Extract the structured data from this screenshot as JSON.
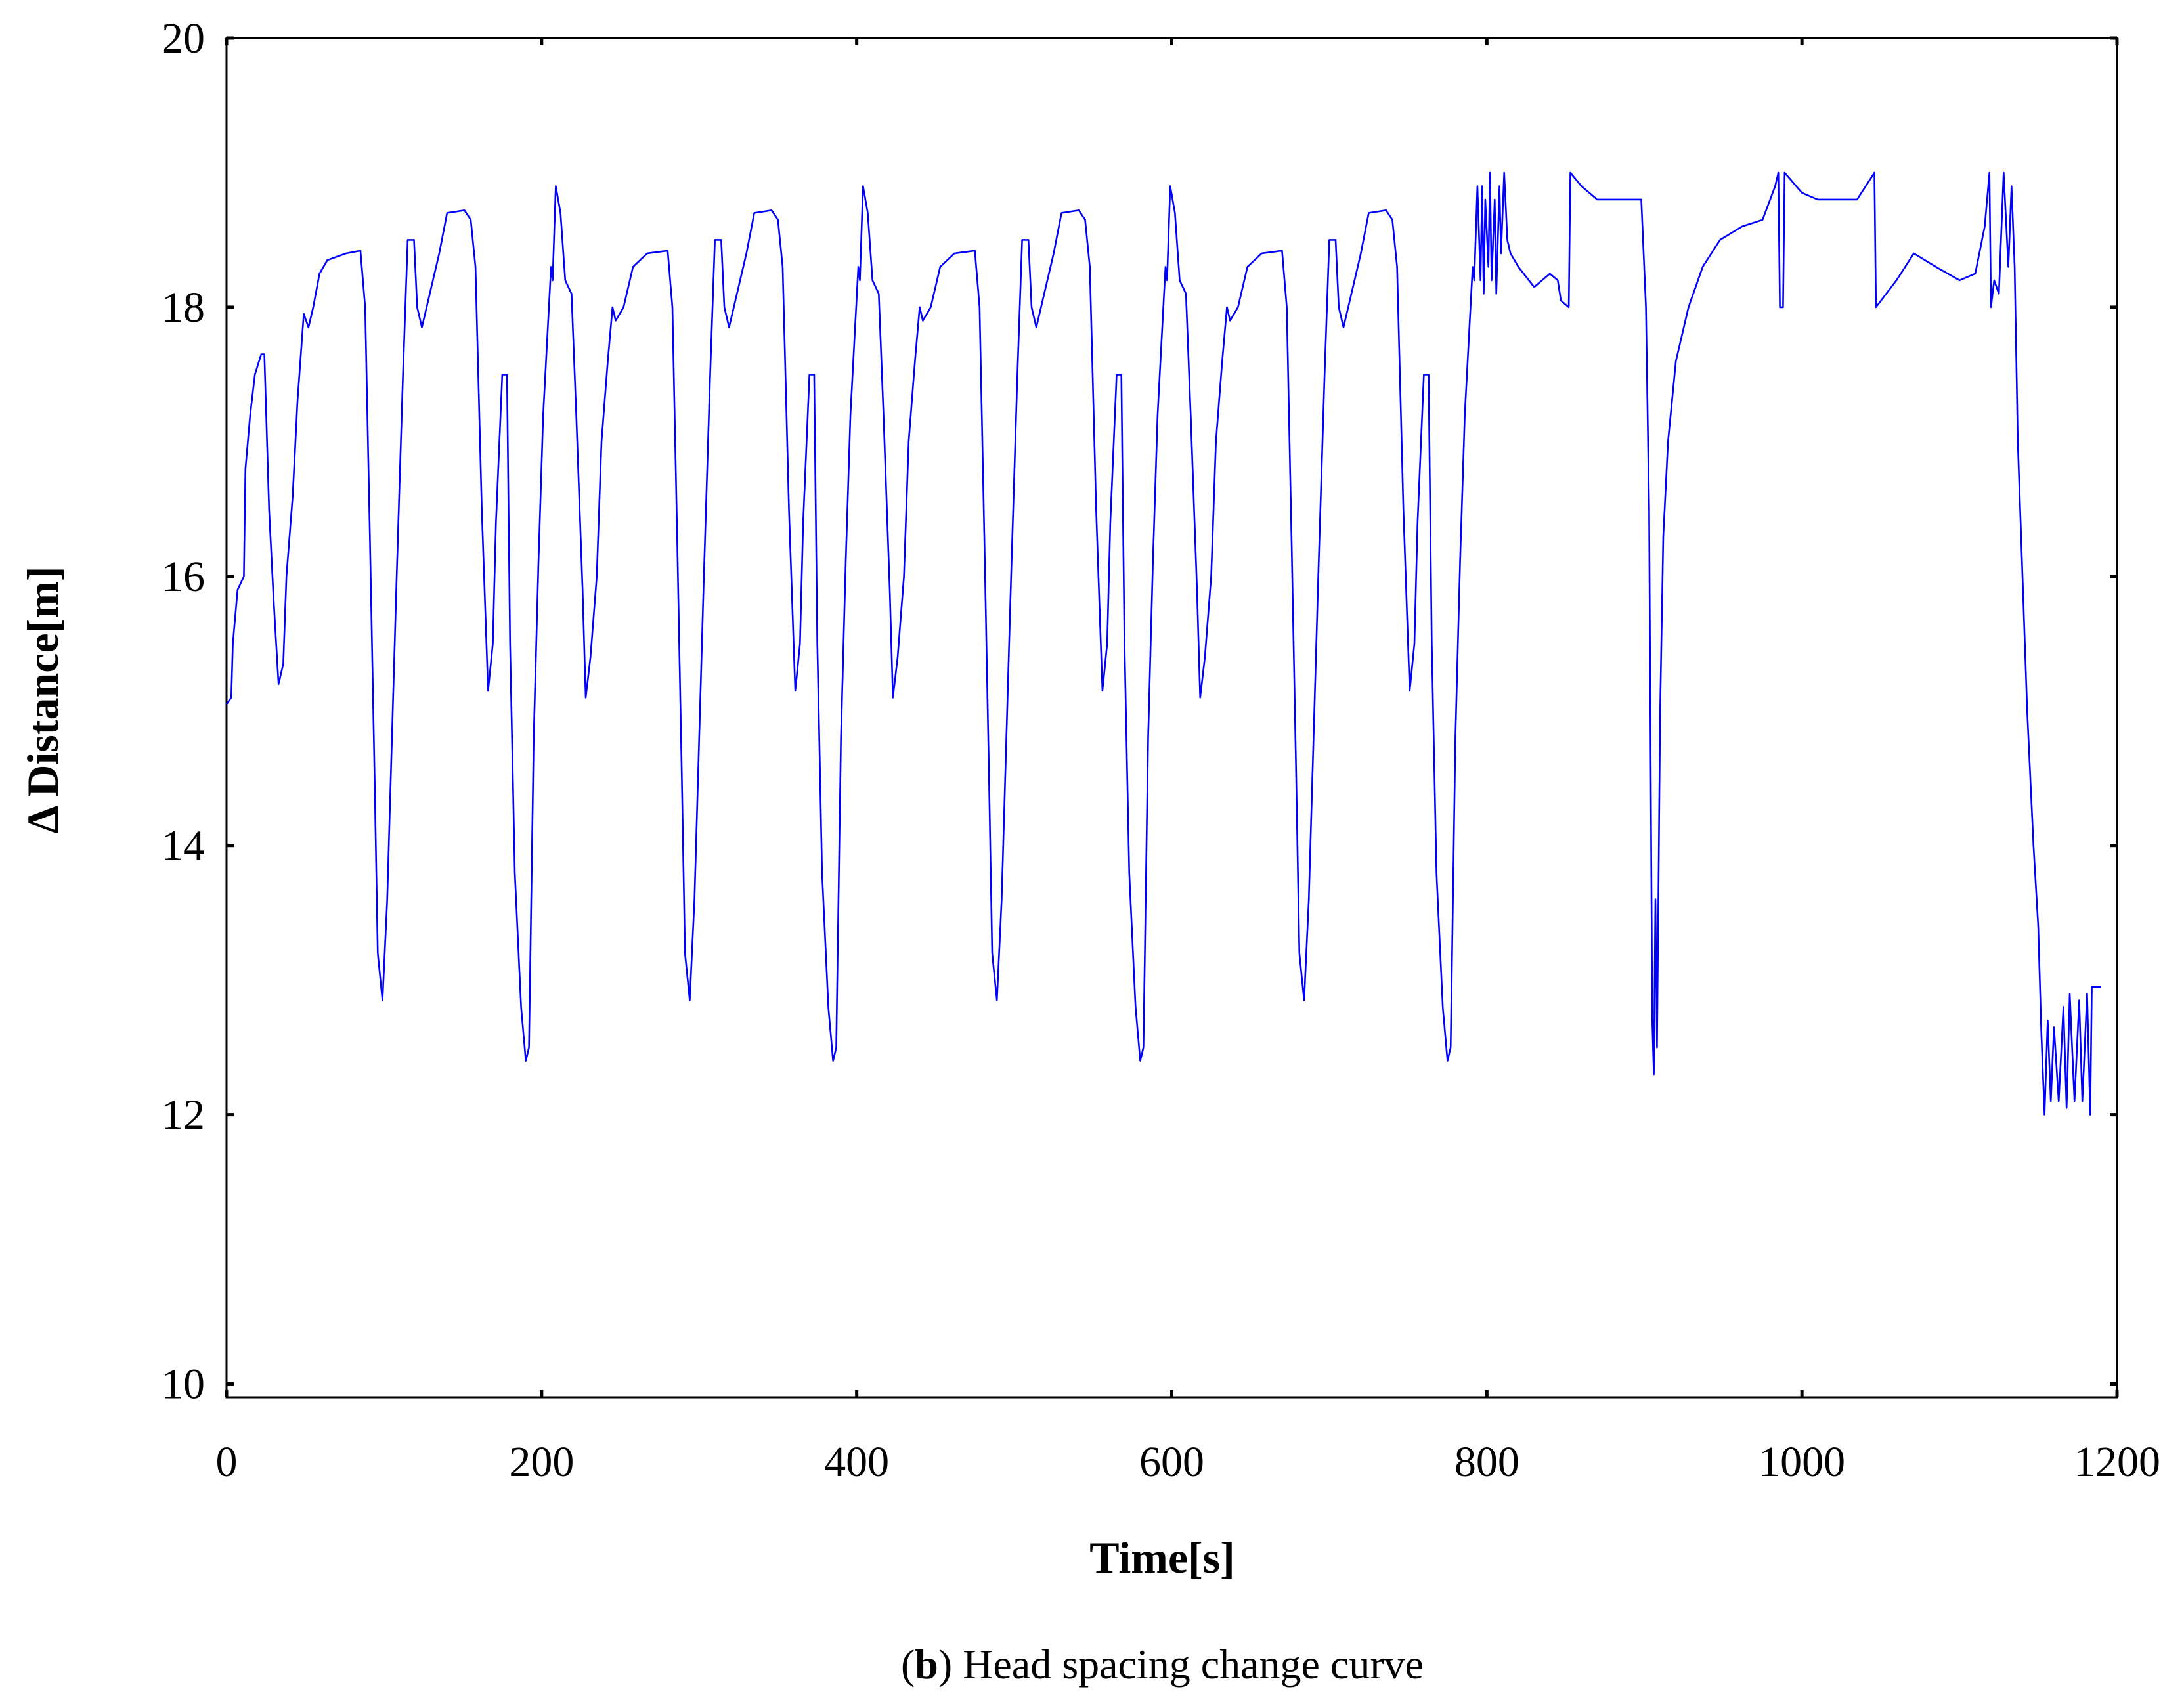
{
  "chart_data": {
    "type": "line",
    "x_label": "Time[s]",
    "y_label": "Δ Distance[m]",
    "caption": [
      "(",
      "b",
      ") Head spacing change curve"
    ],
    "color": "#0000ff",
    "xlim": [
      0,
      1200
    ],
    "ylim": [
      9.9,
      20
    ],
    "xticks": [
      0,
      200,
      400,
      600,
      800,
      1000,
      1200
    ],
    "yticks": [
      10,
      12,
      14,
      16,
      18,
      20
    ],
    "x": [
      0,
      3,
      4,
      7,
      11,
      12,
      15,
      18,
      22,
      24,
      27,
      30,
      33,
      36,
      38,
      42,
      45,
      49,
      52,
      55,
      59,
      64,
      76,
      85,
      88,
      91,
      94,
      96,
      99,
      102,
      105,
      108,
      112,
      115,
      119,
      121,
      124,
      129,
      135,
      140,
      151,
      155,
      158,
      162,
      166,
      169,
      171,
      175,
      178,
      180,
      183,
      187,
      190,
      192,
      195,
      198,
      201,
      206,
      207,
      209,
      212,
      215,
      219,
      222,
      226,
      228,
      231,
      235,
      238,
      242,
      245,
      247,
      252,
      258,
      267,
      280,
      283,
      286,
      289,
      291,
      294,
      297,
      300,
      303,
      307,
      310,
      314,
      316,
      319,
      324,
      330,
      335,
      346,
      350,
      353,
      357,
      361,
      364,
      366,
      370,
      373,
      375,
      378,
      382,
      385,
      387,
      390,
      393,
      396,
      401,
      402,
      404,
      407,
      410,
      414,
      417,
      421,
      423,
      426,
      430,
      433,
      437,
      440,
      442,
      447,
      453,
      462,
      475,
      478,
      481,
      484,
      486,
      489,
      492,
      495,
      498,
      502,
      505,
      509,
      511,
      514,
      519,
      525,
      530,
      541,
      545,
      548,
      552,
      556,
      559,
      561,
      565,
      568,
      570,
      573,
      577,
      580,
      582,
      585,
      588,
      591,
      596,
      597,
      599,
      602,
      605,
      609,
      612,
      616,
      618,
      621,
      625,
      628,
      632,
      635,
      637,
      642,
      648,
      657,
      670,
      673,
      676,
      679,
      681,
      684,
      687,
      690,
      693,
      697,
      700,
      704,
      706,
      709,
      714,
      720,
      725,
      736,
      740,
      743,
      747,
      751,
      754,
      756,
      760,
      763,
      765,
      768,
      772,
      775,
      777,
      780,
      783,
      786,
      791,
      792,
      794,
      796,
      797,
      798,
      799,
      801,
      802,
      803,
      805,
      806,
      808,
      809,
      811,
      813,
      815,
      820,
      830,
      840,
      845,
      847,
      852,
      853,
      860,
      870,
      898,
      901,
      903,
      905,
      906,
      907,
      908,
      910,
      912,
      915,
      920,
      928,
      937,
      948,
      962,
      975,
      983,
      985,
      986,
      988,
      989,
      1000,
      1010,
      1035,
      1046,
      1047,
      1060,
      1071,
      1085,
      1100,
      1110,
      1116,
      1119,
      1120,
      1122,
      1125,
      1128,
      1131,
      1133,
      1135,
      1137,
      1143,
      1147,
      1150,
      1152,
      1154,
      1156,
      1158,
      1160,
      1163,
      1166,
      1168,
      1170,
      1173,
      1176,
      1178,
      1181,
      1183,
      1184,
      1190
    ],
    "values": [
      15.05,
      15.1,
      15.5,
      15.9,
      16.0,
      16.8,
      17.2,
      17.5,
      17.65,
      17.65,
      16.5,
      15.8,
      15.2,
      15.35,
      16.0,
      16.6,
      17.3,
      17.95,
      17.85,
      18.0,
      18.25,
      18.35,
      18.4,
      18.42,
      18.0,
      16.3,
      14.5,
      13.2,
      12.85,
      13.6,
      14.8,
      16.0,
      17.5,
      18.5,
      18.5,
      18.0,
      17.85,
      18.1,
      18.4,
      18.7,
      18.72,
      18.65,
      18.3,
      16.5,
      15.15,
      15.5,
      16.4,
      17.5,
      17.5,
      15.5,
      13.8,
      12.8,
      12.4,
      12.5,
      14.8,
      16.1,
      17.2,
      18.3,
      18.2,
      18.9,
      18.7,
      18.2,
      18.1,
      17.2,
      15.9,
      15.1,
      15.4,
      16.0,
      17.0,
      17.6,
      18.0,
      17.9,
      18.0,
      18.3,
      18.4,
      18.42,
      18.0,
      16.3,
      14.5,
      13.2,
      12.85,
      13.6,
      14.8,
      16.0,
      17.5,
      18.5,
      18.5,
      18.0,
      17.85,
      18.1,
      18.4,
      18.7,
      18.72,
      18.65,
      18.3,
      16.5,
      15.15,
      15.5,
      16.4,
      17.5,
      17.5,
      15.5,
      13.8,
      12.8,
      12.4,
      12.5,
      14.8,
      16.1,
      17.2,
      18.3,
      18.2,
      18.9,
      18.7,
      18.2,
      18.1,
      17.2,
      15.9,
      15.1,
      15.4,
      16.0,
      17.0,
      17.6,
      18.0,
      17.9,
      18.0,
      18.3,
      18.4,
      18.42,
      18.0,
      16.3,
      14.5,
      13.2,
      12.85,
      13.6,
      14.8,
      16.0,
      17.5,
      18.5,
      18.5,
      18.0,
      17.85,
      18.1,
      18.4,
      18.7,
      18.72,
      18.65,
      18.3,
      16.5,
      15.15,
      15.5,
      16.4,
      17.5,
      17.5,
      15.5,
      13.8,
      12.8,
      12.4,
      12.5,
      14.8,
      16.1,
      17.2,
      18.3,
      18.2,
      18.9,
      18.7,
      18.2,
      18.1,
      17.2,
      15.9,
      15.1,
      15.4,
      16.0,
      17.0,
      17.6,
      18.0,
      17.9,
      18.0,
      18.3,
      18.4,
      18.42,
      18.0,
      16.3,
      14.5,
      13.2,
      12.85,
      13.6,
      14.8,
      16.0,
      17.5,
      18.5,
      18.5,
      18.0,
      17.85,
      18.1,
      18.4,
      18.7,
      18.72,
      18.65,
      18.3,
      16.5,
      15.15,
      15.5,
      16.4,
      17.5,
      17.5,
      15.5,
      13.8,
      12.8,
      12.4,
      12.5,
      14.8,
      16.1,
      17.2,
      18.3,
      18.2,
      18.9,
      18.2,
      18.9,
      18.1,
      18.8,
      18.3,
      19.0,
      18.2,
      18.8,
      18.1,
      18.9,
      18.4,
      19.0,
      18.5,
      18.4,
      18.3,
      18.15,
      18.25,
      18.2,
      18.05,
      18.0,
      19.0,
      18.9,
      18.8,
      18.8,
      18.0,
      16.5,
      12.7,
      12.3,
      13.6,
      12.5,
      15.0,
      16.3,
      17.0,
      17.6,
      18.0,
      18.3,
      18.5,
      18.6,
      18.65,
      18.9,
      19.0,
      18.0,
      18.0,
      19.0,
      18.85,
      18.8,
      18.8,
      19.0,
      18.0,
      18.2,
      18.4,
      18.3,
      18.2,
      18.25,
      18.6,
      19.0,
      18.0,
      18.2,
      18.1,
      19.0,
      18.3,
      18.9,
      18.3,
      17.0,
      15.0,
      14.0,
      13.4,
      12.6,
      12.0,
      12.7,
      12.1,
      12.65,
      12.1,
      12.8,
      12.05,
      12.9,
      12.1,
      12.85,
      12.1,
      12.9,
      12.0,
      12.95,
      12.95
    ]
  }
}
